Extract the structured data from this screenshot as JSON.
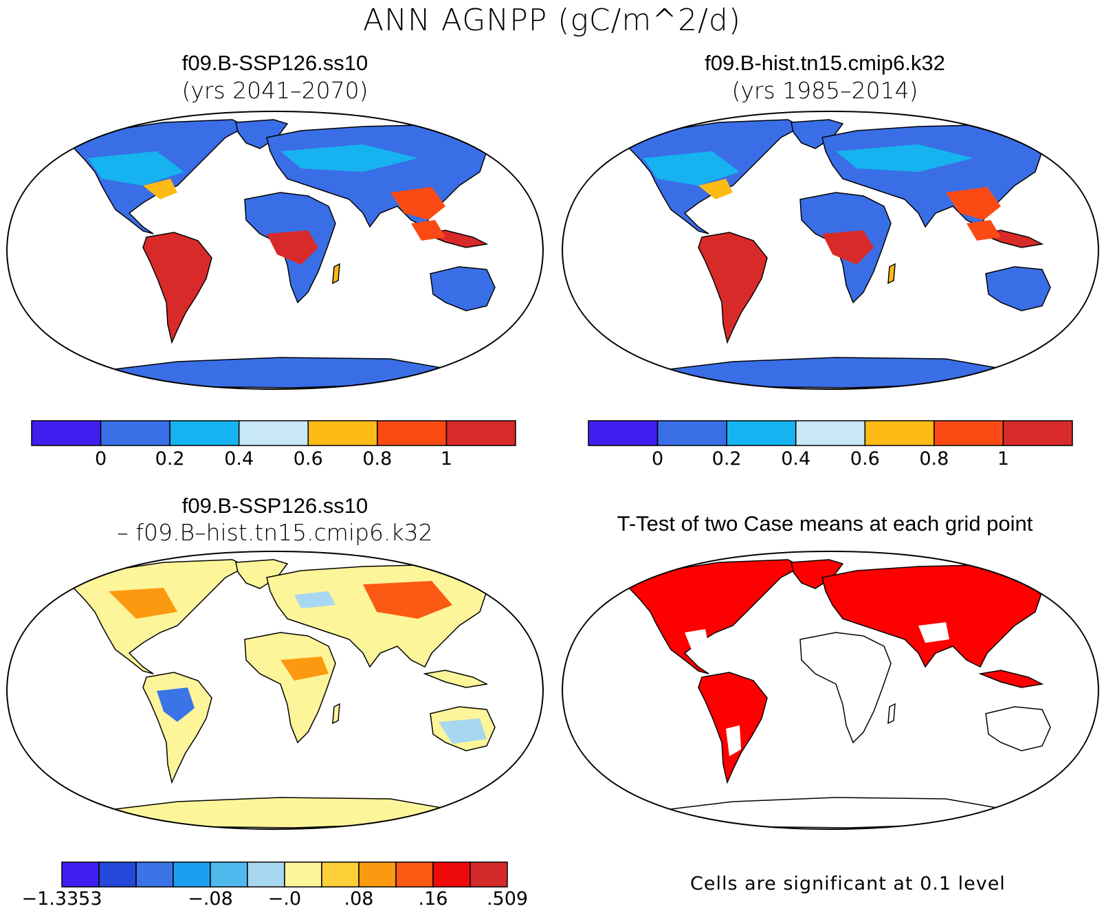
{
  "title": "ANN AGNPP (gC/m^2/d)",
  "panels": {
    "top_left": {
      "title": "f09.B-SSP126.ss10",
      "subtitle": "(yrs 2041–2070)"
    },
    "top_right": {
      "title": "f09.B-hist.tn15.cmip6.k32",
      "subtitle": "(yrs 1985–2014)"
    },
    "bottom_left": {
      "title": "f09.B-SSP126.ss10",
      "subtitle": "– f09.B–hist.tn15.cmip6.k32"
    },
    "bottom_right": {
      "title": "T-Test of two Case means at each grid point",
      "note": "Cells are significant at 0.1 level"
    }
  },
  "colorbars": {
    "abs": {
      "colors": [
        "#3f1ff0",
        "#3a6ee6",
        "#16b3f0",
        "#c8e8f8",
        "#fdbb16",
        "#fb4a14",
        "#d92a2a"
      ],
      "ticks": [
        "0",
        "0.2",
        "0.4",
        "0.6",
        "0.8",
        "1"
      ]
    },
    "diff": {
      "colors": [
        "#3f1ff0",
        "#2648d8",
        "#3a74e6",
        "#1aa0ee",
        "#4fb8ec",
        "#a8d8f0",
        "#fdf59a",
        "#fdd03a",
        "#fb9a10",
        "#fb5a14",
        "#ee0a0a",
        "#d42a2a"
      ],
      "ticks": [
        "−1.3353",
        "−.08",
        "−.0",
        ".08",
        ".16",
        ".509"
      ]
    }
  },
  "map_colors": {
    "ocean": "#ffffff",
    "outline": "#000000",
    "significant": "#ff0000"
  }
}
